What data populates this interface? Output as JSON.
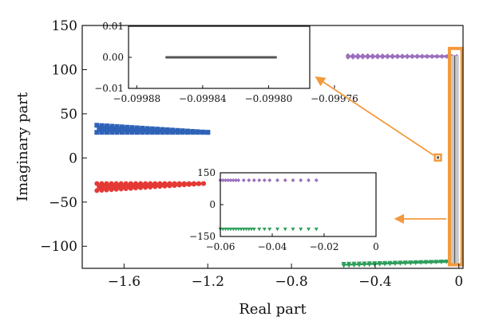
{
  "chart_data": [
    {
      "type": "scatter",
      "role": "main",
      "title": "",
      "xlabel": "Real part",
      "ylabel": "Imaginary part",
      "xlim": [
        -1.8,
        0.02
      ],
      "ylim": [
        -125,
        150
      ],
      "xticks": [
        -1.6,
        -1.2,
        -0.8,
        -0.4,
        0
      ],
      "xtick_labels": [
        "−1.6",
        "−1.2",
        "−0.8",
        "−0.4",
        "0"
      ],
      "yticks": [
        -100,
        -50,
        0,
        50,
        100,
        150
      ],
      "ytick_labels": [
        "−100",
        "−50",
        "0",
        "50",
        "100",
        "150"
      ],
      "grid": false,
      "series": [
        {
          "marker": "square",
          "color": "#2e63b8",
          "shape": "wedge",
          "x_range": [
            -1.73,
            -1.2
          ],
          "y_tip": 29,
          "y_left_top": 37,
          "y_left_bottom": 29
        },
        {
          "marker": "circle",
          "color": "#e53935",
          "shape": "wedge",
          "x_range": [
            -1.73,
            -1.22
          ],
          "y_tip": -29,
          "y_left_top": -29,
          "y_left_bottom": -37
        },
        {
          "marker": "diamond",
          "color": "#9b6fbf",
          "shape": "wedge",
          "x_range": [
            -0.53,
            -0.01
          ],
          "y_tip": 115,
          "y_left_top": 116,
          "y_left_bottom": 114
        },
        {
          "marker": "triangle-down",
          "color": "#2e9e5b",
          "shape": "wedge",
          "x_range": [
            -0.55,
            -0.01
          ],
          "y_tip": -117,
          "y_left_top": -120,
          "y_left_bottom": -122
        },
        {
          "marker": "square",
          "color": "#555555",
          "shape": "column",
          "x_range": [
            -0.04,
            0.0
          ],
          "y_range": [
            -120,
            116
          ]
        }
      ],
      "highlights": [
        {
          "kind": "tall-box",
          "color": "#f39a3c",
          "x_range": [
            -0.045,
            0.015
          ],
          "y_range": [
            -121,
            124
          ]
        },
        {
          "kind": "small-box",
          "color": "#f39a3c",
          "x_range": [
            -0.115,
            -0.085
          ],
          "y_range": [
            -3,
            4
          ]
        }
      ],
      "arrows": [
        {
          "color": "#f39a3c",
          "from": [
            -0.12,
            3
          ],
          "to": [
            -0.68,
            91
          ]
        },
        {
          "color": "#f39a3c",
          "from": [
            -0.06,
            -69
          ],
          "to": [
            -0.3,
            -69
          ]
        }
      ]
    },
    {
      "type": "scatter",
      "role": "inset-top",
      "xlim": [
        -0.099885,
        -0.099775
      ],
      "ylim": [
        -0.01,
        0.01
      ],
      "xticks": [
        -0.09988,
        -0.09984,
        -0.0998,
        -0.09976
      ],
      "xtick_labels": [
        "−0.09988",
        "−0.09984",
        "−0.09980",
        "−0.09976"
      ],
      "yticks": [
        -0.01,
        0.0,
        0.01
      ],
      "ytick_labels": [
        "−0.01",
        "0.00",
        "0.01"
      ],
      "series": [
        {
          "marker": "square",
          "color": "#555555",
          "x_range": [
            -0.099862,
            -0.099795
          ],
          "y": 0.0
        }
      ]
    },
    {
      "type": "scatter",
      "role": "inset-bottom",
      "xlim": [
        -0.06,
        0.0
      ],
      "ylim": [
        -150,
        150
      ],
      "xticks": [
        -0.06,
        -0.04,
        -0.02,
        0
      ],
      "xtick_labels": [
        "−0.06",
        "−0.04",
        "−0.02",
        "0"
      ],
      "yticks": [
        -150,
        0,
        150
      ],
      "ytick_labels": [
        "−150",
        "0",
        "150"
      ],
      "series": [
        {
          "marker": "diamond",
          "color": "#9b6fbf",
          "x": [
            -0.06,
            -0.059,
            -0.058,
            -0.057,
            -0.056,
            -0.055,
            -0.054,
            -0.053,
            -0.051,
            -0.049,
            -0.047,
            -0.045,
            -0.043,
            -0.041,
            -0.038,
            -0.035,
            -0.032,
            -0.029,
            -0.026,
            -0.023
          ],
          "y": 115
        },
        {
          "marker": "triangle-down",
          "color": "#2e9e5b",
          "x": [
            -0.06,
            -0.059,
            -0.058,
            -0.057,
            -0.056,
            -0.055,
            -0.054,
            -0.053,
            -0.052,
            -0.051,
            -0.05,
            -0.049,
            -0.048,
            -0.047,
            -0.045,
            -0.043,
            -0.041,
            -0.038,
            -0.035,
            -0.032,
            -0.029,
            -0.026,
            -0.023
          ],
          "y": -116
        }
      ]
    }
  ]
}
